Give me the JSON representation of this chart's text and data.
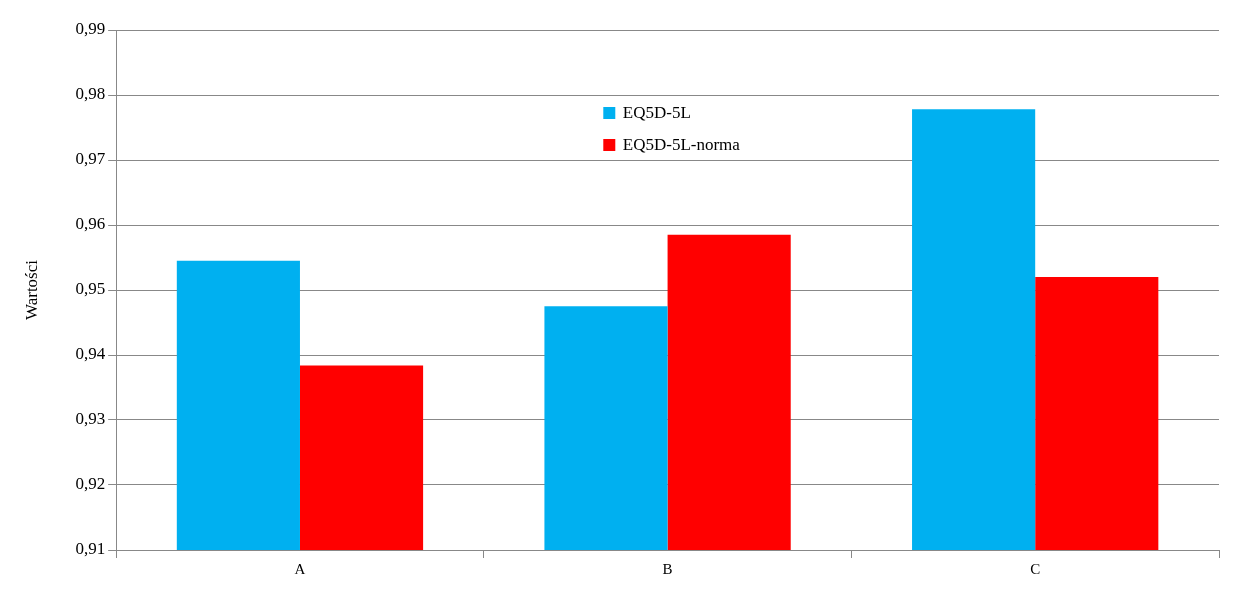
{
  "chart_data": {
    "type": "bar",
    "ylabel": "Wartości",
    "categories": [
      "A",
      "B",
      "C"
    ],
    "series": [
      {
        "name": "EQ5D-5L",
        "color": "#00b0f0",
        "values": [
          0.9545,
          0.9475,
          0.9778
        ]
      },
      {
        "name": "EQ5D-5L-norma",
        "color": "#ff0000",
        "values": [
          0.9384,
          0.9585,
          0.952
        ]
      }
    ],
    "ylim": [
      0.91,
      0.99
    ],
    "yticks": [
      {
        "value": 0.91,
        "label": "0,91"
      },
      {
        "value": 0.92,
        "label": "0,92"
      },
      {
        "value": 0.93,
        "label": "0,93"
      },
      {
        "value": 0.94,
        "label": "0,94"
      },
      {
        "value": 0.95,
        "label": "0,95"
      },
      {
        "value": 0.96,
        "label": "0,96"
      },
      {
        "value": 0.97,
        "label": "0,97"
      },
      {
        "value": 0.98,
        "label": "0,98"
      },
      {
        "value": 0.99,
        "label": "0,99"
      }
    ],
    "grid": "y",
    "legend": "top"
  }
}
